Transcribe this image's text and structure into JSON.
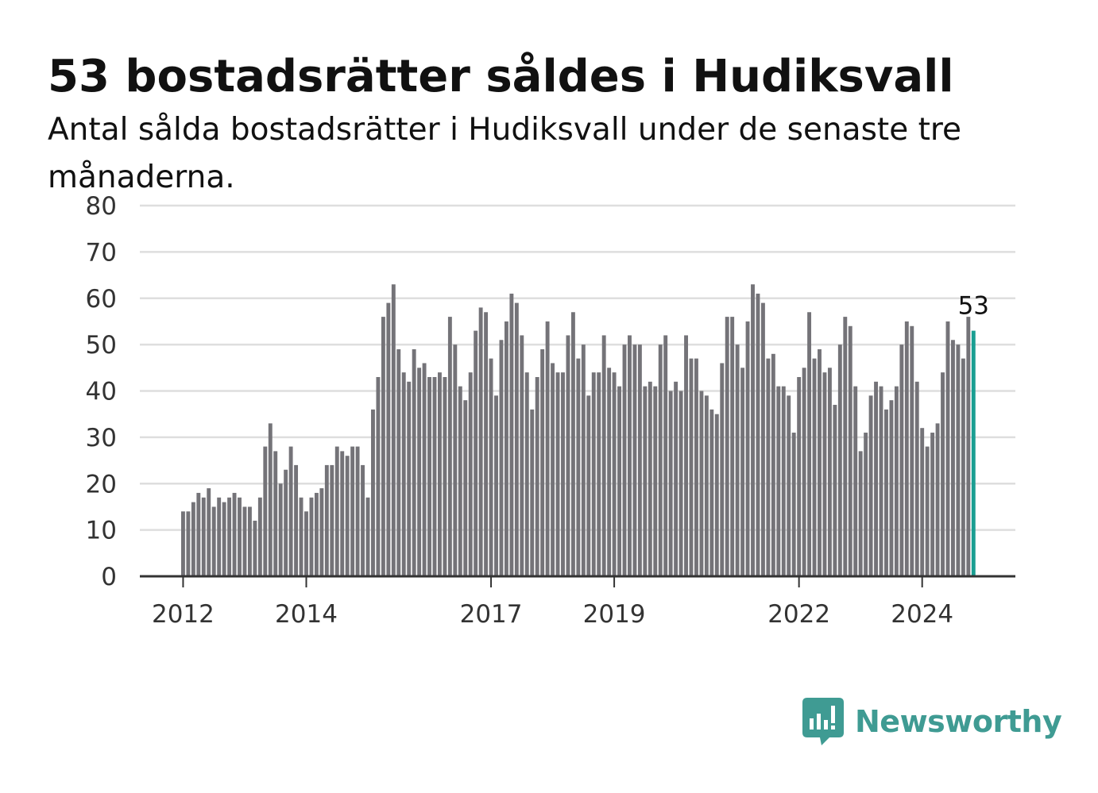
{
  "title": "53 bostadsrätter såldes i Hudiksvall",
  "subtitle": "Antal sålda bostadsrätter i Hudiksvall under de senaste tre månaderna.",
  "logo": {
    "text": "Newsworthy",
    "icon": "chart-speech-bubble-icon"
  },
  "colors": {
    "bar": "#747378",
    "highlight": "#1a9e92",
    "grid": "#dedede",
    "axis": "#333333"
  },
  "chart_data": {
    "type": "bar",
    "title": "53 bostadsrätter såldes i Hudiksvall",
    "subtitle": "Antal sålda bostadsrätter i Hudiksvall under de senaste tre månaderna.",
    "xlabel": "",
    "ylabel": "",
    "ylim": [
      0,
      80
    ],
    "yticks": [
      0,
      10,
      20,
      30,
      40,
      50,
      60,
      70,
      80
    ],
    "xticks": [
      {
        "label": "2012",
        "month_index": 0
      },
      {
        "label": "2014",
        "month_index": 24
      },
      {
        "label": "2017",
        "month_index": 60
      },
      {
        "label": "2019",
        "month_index": 84
      },
      {
        "label": "2022",
        "month_index": 120
      },
      {
        "label": "2024",
        "month_index": 144
      }
    ],
    "first_month": "2012-01",
    "grid": true,
    "highlight_last": true,
    "data_label": "53",
    "values": [
      14,
      14,
      16,
      18,
      17,
      19,
      15,
      17,
      16,
      17,
      18,
      17,
      15,
      15,
      12,
      17,
      28,
      33,
      27,
      20,
      23,
      28,
      24,
      17,
      14,
      17,
      18,
      19,
      24,
      24,
      28,
      27,
      26,
      28,
      28,
      24,
      17,
      36,
      43,
      56,
      59,
      63,
      49,
      44,
      42,
      49,
      45,
      46,
      43,
      43,
      44,
      43,
      56,
      50,
      41,
      38,
      44,
      53,
      58,
      57,
      47,
      39,
      51,
      55,
      61,
      59,
      52,
      44,
      36,
      43,
      49,
      55,
      46,
      44,
      44,
      52,
      57,
      47,
      50,
      39,
      44,
      44,
      52,
      45,
      44,
      41,
      50,
      52,
      50,
      50,
      41,
      42,
      41,
      50,
      52,
      40,
      42,
      40,
      52,
      47,
      47,
      40,
      39,
      36,
      35,
      46,
      56,
      56,
      50,
      45,
      55,
      63,
      61,
      59,
      47,
      48,
      41,
      41,
      39,
      31,
      43,
      45,
      57,
      47,
      49,
      44,
      45,
      37,
      50,
      56,
      54,
      41,
      27,
      31,
      39,
      42,
      41,
      36,
      38,
      41,
      50,
      55,
      54,
      42,
      32,
      28,
      31,
      33,
      44,
      55,
      51,
      50,
      47,
      56,
      53
    ]
  }
}
